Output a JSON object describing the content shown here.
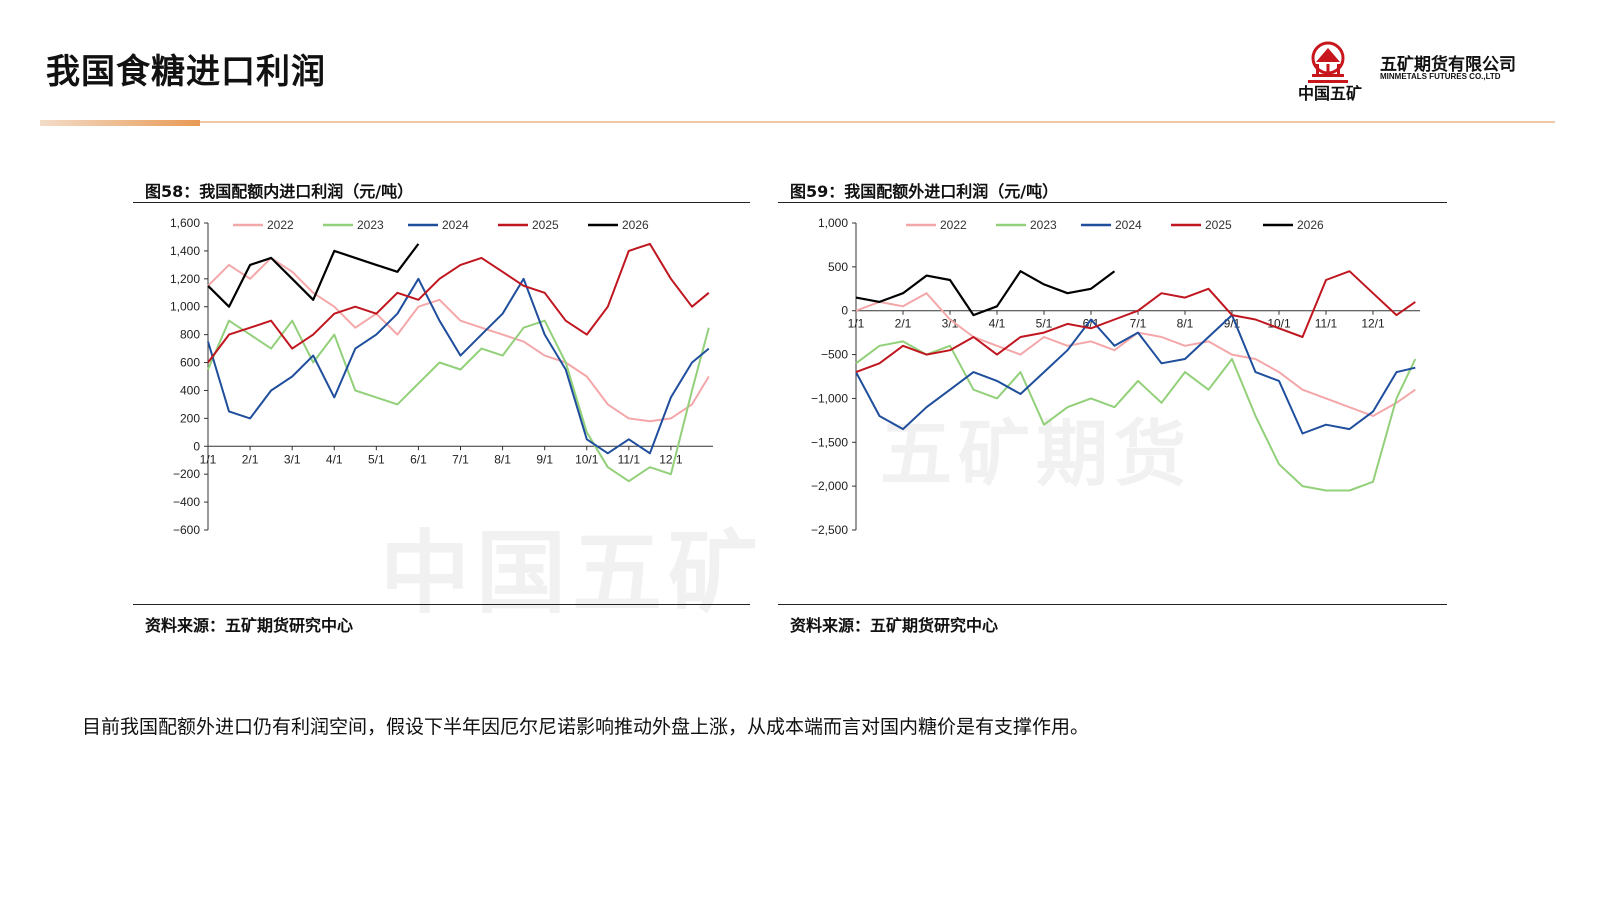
{
  "page": {
    "title": "我国食糖进口利润",
    "body_text": "目前我国配额外进口仍有利润空间，假设下半年因厄尔尼诺影响推动外盘上涨，从成本端而言对国内糖价是有支撑作用。"
  },
  "logo": {
    "cn_short": "中国五矿",
    "company_cn": "五矿期货有限公司",
    "company_en": "MINMETALS FUTURES CO.,LTD",
    "brand_color": "#c8161d"
  },
  "watermark": {
    "left": "中国五矿",
    "right": "五矿期货"
  },
  "colors": {
    "2022": "#f4a7a9",
    "2023": "#93d07a",
    "2024": "#1f4e9c",
    "2025": "#c0161f",
    "2026": "#000000"
  },
  "figures": [
    {
      "title": "图58：我国配额内进口利润（元/吨）",
      "source": "资料来源：五矿期货研究中心"
    },
    {
      "title": "图59：我国配额外进口利润（元/吨）",
      "source": "资料来源：五矿期货研究中心"
    }
  ],
  "chart_data": [
    {
      "type": "line",
      "title": "图58：我国配额内进口利润（元/吨）",
      "ylim": [
        -600,
        1600
      ],
      "y_ticks": [
        "1,600",
        "1,400",
        "1,200",
        "1,000",
        "800",
        "600",
        "400",
        "200",
        "0",
        "−200",
        "−400",
        "−600"
      ],
      "y_tick_values": [
        1600,
        1400,
        1200,
        1000,
        800,
        600,
        400,
        200,
        0,
        -200,
        -400,
        -600
      ],
      "x_ticks": [
        "1/1",
        "2/1",
        "3/1",
        "4/1",
        "5/1",
        "6/1",
        "7/1",
        "8/1",
        "9/1",
        "10/1",
        "11/1",
        "12/1"
      ],
      "legend_position": "top",
      "grid": false,
      "series": [
        {
          "name": "2022",
          "color": "#f4a7a9",
          "x": [
            0,
            0.5,
            1,
            1.5,
            2,
            2.5,
            3,
            3.5,
            4,
            4.5,
            5,
            5.5,
            6,
            6.5,
            7,
            7.5,
            8,
            8.5,
            9,
            9.5,
            10,
            10.5,
            11,
            11.5,
            11.9
          ],
          "values": [
            1150,
            1300,
            1200,
            1350,
            1250,
            1100,
            1000,
            850,
            950,
            800,
            1000,
            1050,
            900,
            850,
            800,
            750,
            650,
            600,
            500,
            300,
            200,
            180,
            200,
            300,
            500
          ]
        },
        {
          "name": "2023",
          "color": "#93d07a",
          "x": [
            0,
            0.5,
            1,
            1.5,
            2,
            2.5,
            3,
            3.5,
            4,
            4.5,
            5,
            5.5,
            6,
            6.5,
            7,
            7.5,
            8,
            8.5,
            9,
            9.5,
            10,
            10.5,
            11,
            11.5,
            11.9
          ],
          "values": [
            550,
            900,
            800,
            700,
            900,
            600,
            800,
            400,
            350,
            300,
            450,
            600,
            550,
            700,
            650,
            850,
            900,
            600,
            100,
            -150,
            -250,
            -150,
            -200,
            400,
            850
          ]
        },
        {
          "name": "2024",
          "color": "#1f4e9c",
          "x": [
            0,
            0.5,
            1,
            1.5,
            2,
            2.5,
            3,
            3.5,
            4,
            4.5,
            5,
            5.5,
            6,
            6.5,
            7,
            7.5,
            8,
            8.5,
            9,
            9.5,
            10,
            10.5,
            11,
            11.5,
            11.9
          ],
          "values": [
            750,
            250,
            200,
            400,
            500,
            650,
            350,
            700,
            800,
            950,
            1200,
            900,
            650,
            800,
            950,
            1200,
            800,
            550,
            50,
            -50,
            50,
            -50,
            350,
            600,
            700
          ]
        },
        {
          "name": "2025",
          "color": "#c0161f",
          "x": [
            0,
            0.5,
            1,
            1.5,
            2,
            2.5,
            3,
            3.5,
            4,
            4.5,
            5,
            5.5,
            6,
            6.5,
            7,
            7.5,
            8,
            8.5,
            9,
            9.5,
            10,
            10.5,
            11,
            11.5,
            11.9
          ],
          "values": [
            600,
            800,
            850,
            900,
            700,
            800,
            950,
            1000,
            950,
            1100,
            1050,
            1200,
            1300,
            1350,
            1250,
            1150,
            1100,
            900,
            800,
            1000,
            1400,
            1450,
            1200,
            1000,
            1100
          ]
        },
        {
          "name": "2026",
          "color": "#000000",
          "x": [
            0,
            0.5,
            1,
            1.5,
            2,
            2.5,
            3,
            3.5,
            4,
            4.5,
            5
          ],
          "values": [
            1150,
            1000,
            1300,
            1350,
            1200,
            1050,
            1400,
            1350,
            1300,
            1250,
            1450
          ]
        }
      ]
    },
    {
      "type": "line",
      "title": "图59：我国配额外进口利润（元/吨）",
      "ylim": [
        -2500,
        1000
      ],
      "y_ticks": [
        "1,000",
        "500",
        "0",
        "−500",
        "−1,000",
        "−1,500",
        "−2,000",
        "−2,500"
      ],
      "y_tick_values": [
        1000,
        500,
        0,
        -500,
        -1000,
        -1500,
        -2000,
        -2500
      ],
      "x_ticks": [
        "1/1",
        "2/1",
        "3/1",
        "4/1",
        "5/1",
        "6/1",
        "7/1",
        "8/1",
        "9/1",
        "10/1",
        "11/1",
        "12/1"
      ],
      "legend_position": "top",
      "grid": false,
      "series": [
        {
          "name": "2022",
          "color": "#f4a7a9",
          "x": [
            0,
            0.5,
            1,
            1.5,
            2,
            2.5,
            3,
            3.5,
            4,
            4.5,
            5,
            5.5,
            6,
            6.5,
            7,
            7.5,
            8,
            8.5,
            9,
            9.5,
            10,
            10.5,
            11,
            11.5,
            11.9
          ],
          "values": [
            0,
            100,
            50,
            200,
            -100,
            -300,
            -400,
            -500,
            -300,
            -400,
            -350,
            -450,
            -250,
            -300,
            -400,
            -350,
            -500,
            -550,
            -700,
            -900,
            -1000,
            -1100,
            -1200,
            -1050,
            -900
          ]
        },
        {
          "name": "2023",
          "color": "#93d07a",
          "x": [
            0,
            0.5,
            1,
            1.5,
            2,
            2.5,
            3,
            3.5,
            4,
            4.5,
            5,
            5.5,
            6,
            6.5,
            7,
            7.5,
            8,
            8.5,
            9,
            9.5,
            10,
            10.5,
            11,
            11.5,
            11.9
          ],
          "values": [
            -600,
            -400,
            -350,
            -500,
            -400,
            -900,
            -1000,
            -700,
            -1300,
            -1100,
            -1000,
            -1100,
            -800,
            -1050,
            -700,
            -900,
            -550,
            -1200,
            -1750,
            -2000,
            -2050,
            -2050,
            -1950,
            -1000,
            -550
          ]
        },
        {
          "name": "2024",
          "color": "#1f4e9c",
          "x": [
            0,
            0.5,
            1,
            1.5,
            2,
            2.5,
            3,
            3.5,
            4,
            4.5,
            5,
            5.5,
            6,
            6.5,
            7,
            7.5,
            8,
            8.5,
            9,
            9.5,
            10,
            10.5,
            11,
            11.5,
            11.9
          ],
          "values": [
            -700,
            -1200,
            -1350,
            -1100,
            -900,
            -700,
            -800,
            -950,
            -700,
            -450,
            -100,
            -400,
            -250,
            -600,
            -550,
            -300,
            -50,
            -700,
            -800,
            -1400,
            -1300,
            -1350,
            -1150,
            -700,
            -650
          ]
        },
        {
          "name": "2025",
          "color": "#c0161f",
          "x": [
            0,
            0.5,
            1,
            1.5,
            2,
            2.5,
            3,
            3.5,
            4,
            4.5,
            5,
            5.5,
            6,
            6.5,
            7,
            7.5,
            8,
            8.5,
            9,
            9.5,
            10,
            10.5,
            11,
            11.5,
            11.9
          ],
          "values": [
            -700,
            -600,
            -400,
            -500,
            -450,
            -300,
            -500,
            -300,
            -250,
            -150,
            -200,
            -100,
            0,
            200,
            150,
            250,
            -50,
            -100,
            -200,
            -300,
            350,
            450,
            200,
            -50,
            100
          ]
        },
        {
          "name": "2026",
          "color": "#000000",
          "x": [
            0,
            0.5,
            1,
            1.5,
            2,
            2.5,
            3,
            3.5,
            4,
            4.5,
            5,
            5.5
          ],
          "values": [
            150,
            100,
            200,
            400,
            350,
            -50,
            50,
            450,
            300,
            200,
            250,
            450
          ]
        }
      ]
    }
  ]
}
